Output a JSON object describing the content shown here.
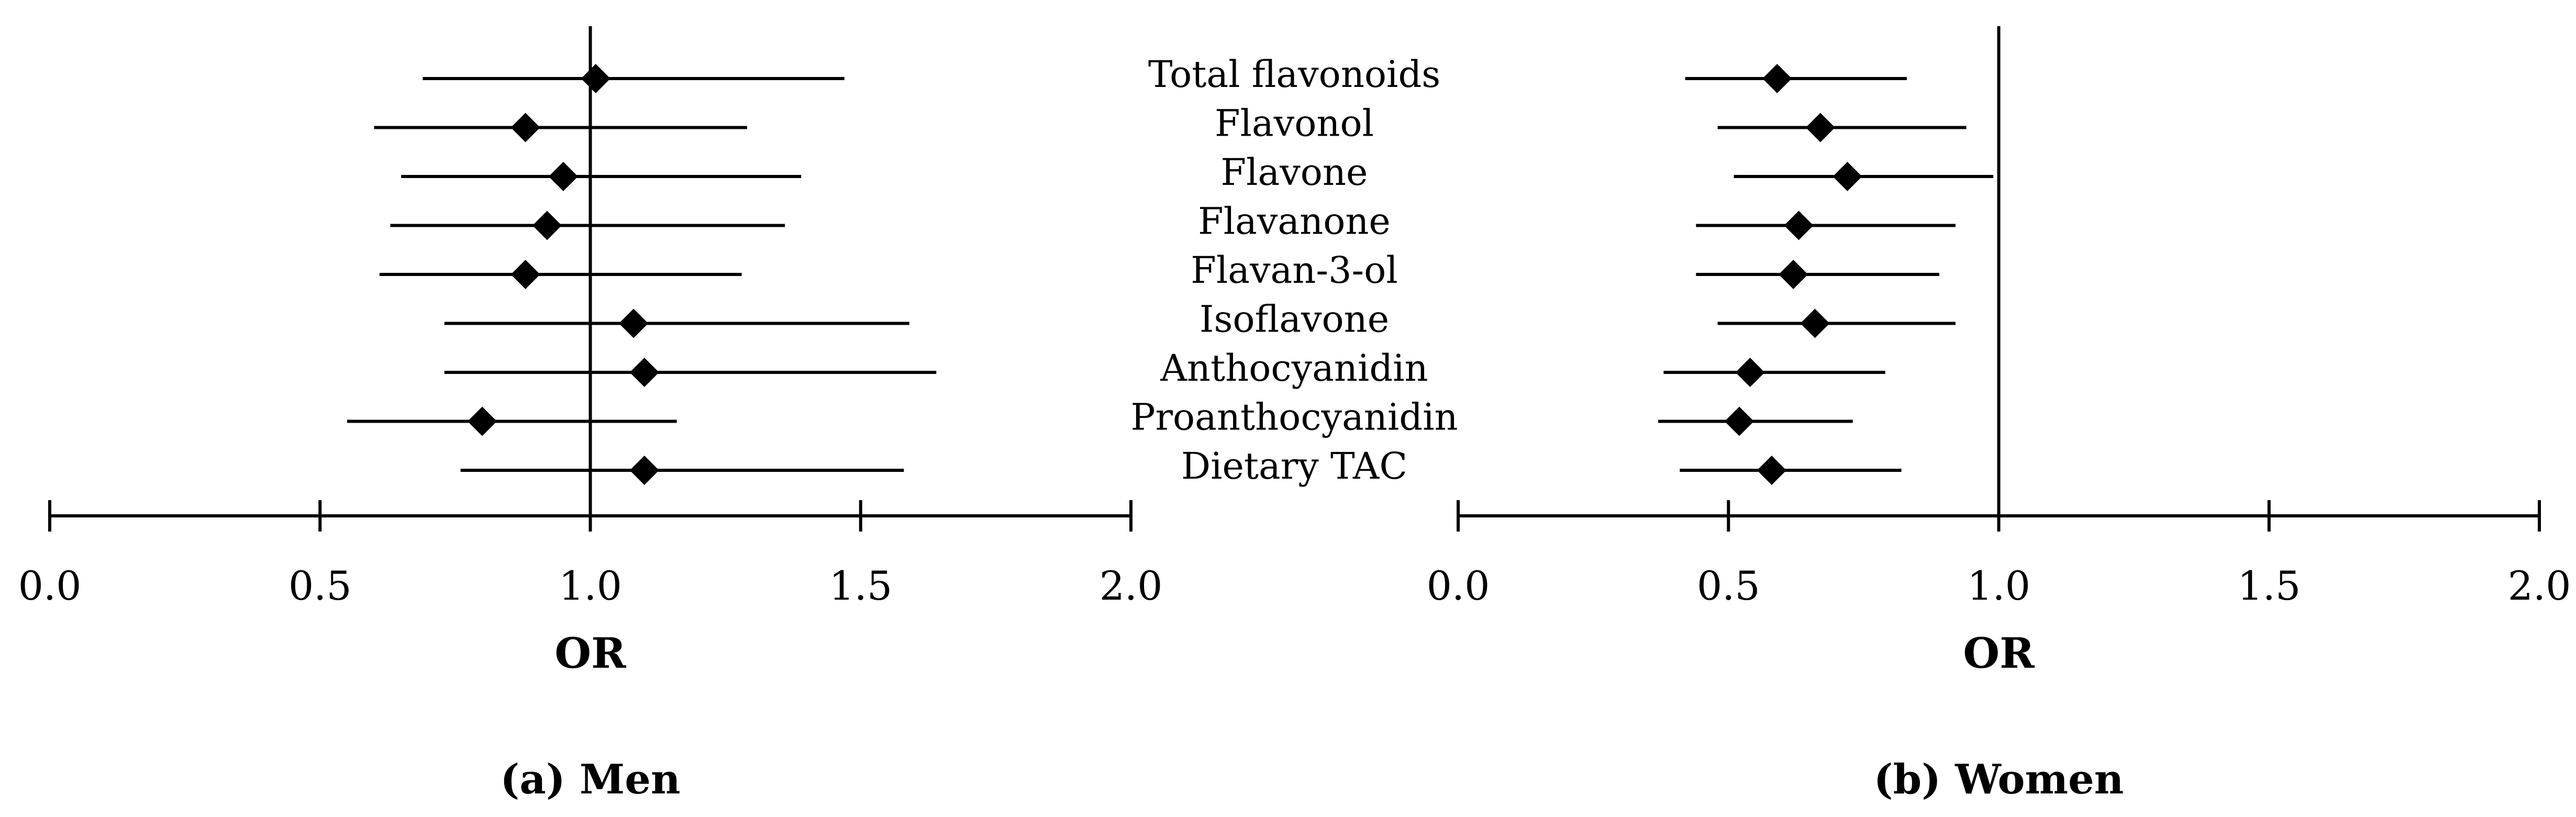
{
  "chart_data": {
    "type": "forest",
    "categories": [
      "Total flavonoids",
      "Flavonol",
      "Flavone",
      "Flavanone",
      "Flavan-3-ol",
      "Isoflavone",
      "Anthocyanidin",
      "Proanthocyanidin",
      "Dietary TAC"
    ],
    "panels": [
      {
        "caption": "(a) Men",
        "xlabel": "OR",
        "xlim": [
          0.0,
          2.0
        ],
        "ticks": [
          "0.0",
          "0.5",
          "1.0",
          "1.5",
          "2.0"
        ],
        "reference_line": 1.0,
        "series": [
          {
            "or": [
              1.01,
              0.88,
              0.95,
              0.92,
              0.88,
              1.08,
              1.1,
              0.8,
              1.1
            ],
            "lower": [
              0.69,
              0.6,
              0.65,
              0.63,
              0.61,
              0.73,
              0.73,
              0.55,
              0.76
            ],
            "upper": [
              1.47,
              1.29,
              1.39,
              1.36,
              1.28,
              1.59,
              1.64,
              1.16,
              1.58
            ]
          }
        ]
      },
      {
        "caption": "(b) Women",
        "xlabel": "OR",
        "xlim": [
          0.0,
          2.0
        ],
        "ticks": [
          "0.0",
          "0.5",
          "1.0",
          "1.5",
          "2.0"
        ],
        "reference_line": 1.0,
        "series": [
          {
            "or": [
              0.59,
              0.67,
              0.72,
              0.63,
              0.62,
              0.66,
              0.54,
              0.52,
              0.58
            ],
            "lower": [
              0.42,
              0.48,
              0.51,
              0.44,
              0.44,
              0.48,
              0.38,
              0.37,
              0.41
            ],
            "upper": [
              0.83,
              0.94,
              0.99,
              0.92,
              0.89,
              0.92,
              0.79,
              0.73,
              0.82
            ]
          }
        ]
      }
    ]
  }
}
